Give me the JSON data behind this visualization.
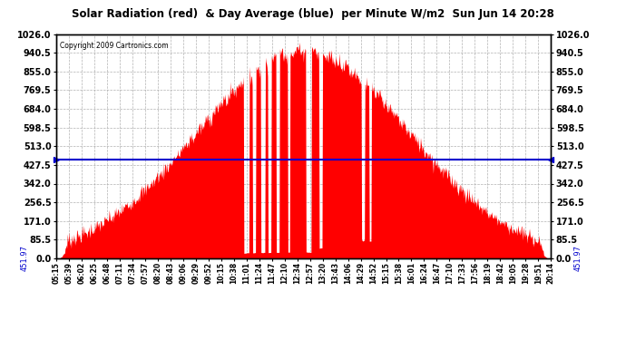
{
  "title": "Solar Radiation (red)  & Day Average (blue)  per Minute W/m2  Sun Jun 14 20:28",
  "copyright": "Copyright 2009 Cartronics.com",
  "avg_value": 451.97,
  "y_max": 1026.0,
  "y_min": 0.0,
  "y_ticks": [
    0.0,
    85.5,
    171.0,
    256.5,
    342.0,
    427.5,
    513.0,
    598.5,
    684.0,
    769.5,
    855.0,
    940.5,
    1026.0
  ],
  "fill_color": "#FF0000",
  "avg_line_color": "#0000CD",
  "background_color": "#FFFFFF",
  "grid_color": "#AAAAAA",
  "title_color": "#000000",
  "left_label_color": "#0000CD",
  "x_tick_labels": [
    "05:15",
    "05:39",
    "06:02",
    "06:25",
    "06:48",
    "07:11",
    "07:34",
    "07:57",
    "08:20",
    "08:43",
    "09:06",
    "09:29",
    "09:52",
    "10:15",
    "10:38",
    "11:01",
    "11:24",
    "11:47",
    "12:10",
    "12:34",
    "12:57",
    "13:20",
    "13:43",
    "14:06",
    "14:29",
    "14:52",
    "15:15",
    "15:38",
    "16:01",
    "16:24",
    "16:47",
    "17:10",
    "17:33",
    "17:56",
    "18:19",
    "18:42",
    "19:05",
    "19:28",
    "19:51",
    "20:14"
  ],
  "figsize": [
    6.9,
    3.75
  ],
  "dpi": 100
}
